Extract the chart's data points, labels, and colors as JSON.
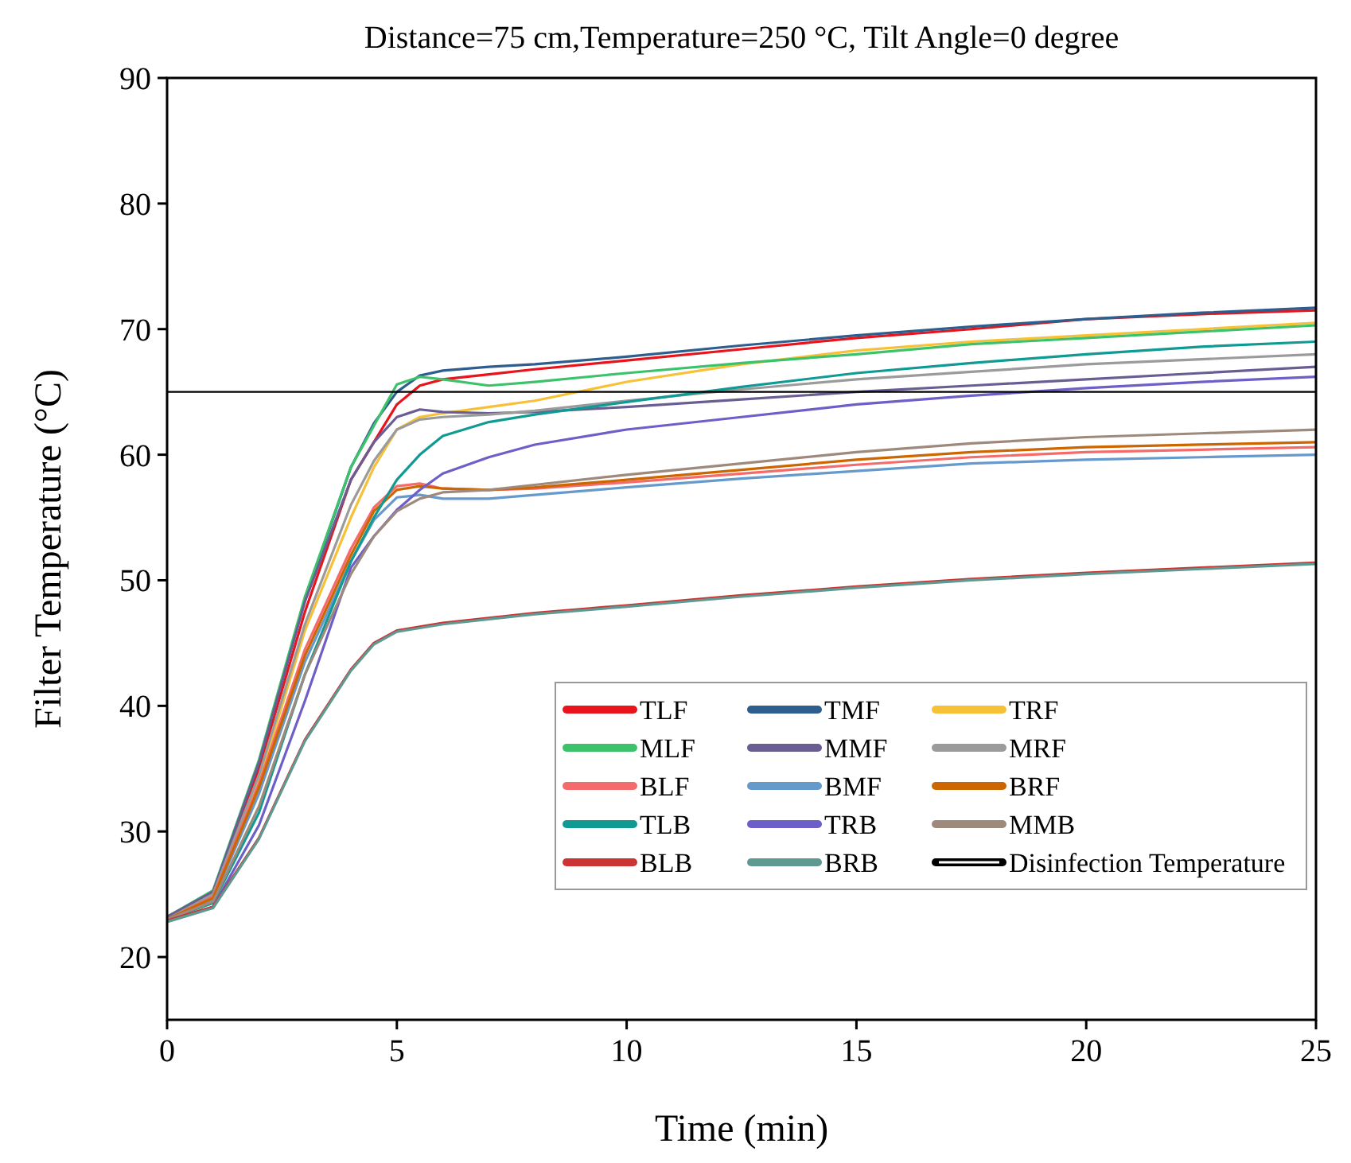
{
  "chart_data": {
    "type": "line",
    "title": "Distance=75 cm,Temperature=250 °C, Tilt Angle=0 degree",
    "xlabel": "Time (min)",
    "ylabel": "Filter Temperature (°C)",
    "x": [
      0,
      1,
      2,
      3,
      4,
      4.5,
      5,
      5.5,
      6,
      7,
      8,
      10,
      12.5,
      15,
      17.5,
      20,
      22.5,
      25
    ],
    "xlim": [
      0,
      25
    ],
    "xticks": [
      0,
      5,
      10,
      15,
      20,
      25
    ],
    "ylim": [
      15,
      90
    ],
    "yticks": [
      20,
      30,
      40,
      50,
      60,
      70,
      80,
      90
    ],
    "legend": "bottom right",
    "grid": false,
    "marker": "none",
    "line_style": "solid",
    "ref_lines": [
      {
        "axis": "y",
        "value": 65,
        "label": "Disinfection Temperature",
        "color": "#000000"
      }
    ],
    "series": [
      {
        "name": "TLF",
        "color": "#e8131b",
        "values": [
          23.2,
          25,
          35,
          47.5,
          58,
          61,
          64,
          65.5,
          66,
          66.4,
          66.8,
          67.5,
          68.4,
          69.3,
          70,
          70.8,
          71.2,
          71.5
        ]
      },
      {
        "name": "TMF",
        "color": "#2e5e8e",
        "values": [
          23.2,
          25.2,
          35.5,
          48.5,
          59,
          62.5,
          65,
          66.3,
          66.7,
          67,
          67.2,
          67.8,
          68.7,
          69.5,
          70.2,
          70.8,
          71.3,
          71.7
        ]
      },
      {
        "name": "TRF",
        "color": "#f7c137",
        "values": [
          23,
          24.8,
          34,
          46,
          55,
          59,
          62,
          63,
          63.3,
          63.8,
          64.3,
          65.8,
          67.2,
          68.3,
          69,
          69.5,
          70,
          70.5
        ]
      },
      {
        "name": "MLF",
        "color": "#3cc26b",
        "values": [
          23.2,
          25.3,
          35.7,
          48.7,
          59,
          62.3,
          65.6,
          66.2,
          66,
          65.5,
          65.8,
          66.5,
          67.3,
          68,
          68.8,
          69.3,
          69.8,
          70.3
        ]
      },
      {
        "name": "MMF",
        "color": "#6a5d92",
        "values": [
          23.2,
          25.2,
          35.5,
          48.3,
          58,
          61,
          63,
          63.6,
          63.4,
          63.3,
          63.4,
          63.8,
          64.4,
          65,
          65.5,
          66,
          66.5,
          67
        ]
      },
      {
        "name": "MRF",
        "color": "#9b9b9b",
        "values": [
          23,
          25,
          34.5,
          46.5,
          56,
          59.5,
          62,
          62.8,
          63,
          63.2,
          63.5,
          64.3,
          65.2,
          66,
          66.6,
          67.2,
          67.6,
          68
        ]
      },
      {
        "name": "BLF",
        "color": "#f56a6a",
        "values": [
          23,
          24.8,
          33.8,
          44.5,
          52.5,
          55.8,
          57.5,
          57.7,
          57.3,
          57.2,
          57.3,
          57.8,
          58.5,
          59.2,
          59.8,
          60.2,
          60.4,
          60.6
        ]
      },
      {
        "name": "BMF",
        "color": "#6699cc",
        "values": [
          23,
          24.6,
          33,
          43.5,
          51.5,
          54.8,
          56.6,
          56.8,
          56.5,
          56.5,
          56.8,
          57.4,
          58.1,
          58.7,
          59.3,
          59.6,
          59.8,
          60
        ]
      },
      {
        "name": "BRF",
        "color": "#cc6600",
        "values": [
          23,
          24.7,
          33.5,
          44,
          52,
          55.5,
          57.2,
          57.5,
          57.3,
          57.2,
          57.4,
          58,
          58.8,
          59.6,
          60.2,
          60.6,
          60.8,
          61
        ]
      },
      {
        "name": "TLB",
        "color": "#0f9a94",
        "values": [
          23,
          24.3,
          31.5,
          42.5,
          51.5,
          55,
          58,
          60,
          61.5,
          62.6,
          63.2,
          64.2,
          65.4,
          66.5,
          67.3,
          68,
          68.6,
          69
        ]
      },
      {
        "name": "TRB",
        "color": "#6c5fc7",
        "values": [
          22.9,
          24,
          30.5,
          40.4,
          51,
          53.5,
          55.6,
          57.2,
          58.5,
          59.8,
          60.8,
          62,
          63,
          64,
          64.7,
          65.3,
          65.8,
          66.2
        ]
      },
      {
        "name": "MMB",
        "color": "#9e8a7c",
        "values": [
          23,
          24.4,
          32,
          42.5,
          50.5,
          53.5,
          55.5,
          56.5,
          57,
          57.2,
          57.6,
          58.4,
          59.3,
          60.2,
          60.9,
          61.4,
          61.7,
          62
        ]
      },
      {
        "name": "BLB",
        "color": "#cc3333",
        "values": [
          22.9,
          24,
          29.5,
          37.3,
          42.9,
          45,
          46,
          46.3,
          46.6,
          47,
          47.4,
          48,
          48.8,
          49.5,
          50.1,
          50.6,
          51,
          51.4
        ]
      },
      {
        "name": "BRB",
        "color": "#5f9a92",
        "values": [
          22.8,
          23.9,
          29.4,
          37.2,
          42.8,
          44.9,
          45.9,
          46.2,
          46.5,
          46.9,
          47.3,
          47.9,
          48.7,
          49.4,
          50,
          50.5,
          50.9,
          51.3
        ]
      }
    ]
  }
}
